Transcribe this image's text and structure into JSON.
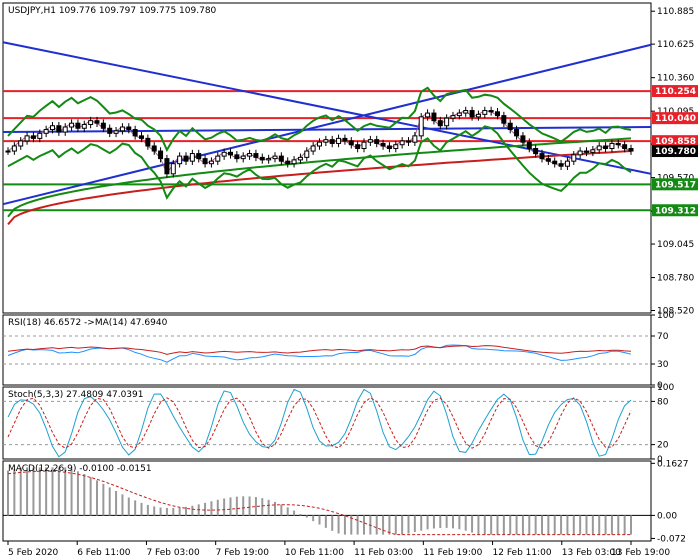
{
  "chart_data": [
    {
      "type": "candlestick",
      "header": {
        "symbol": "USDJPY,H1",
        "open": "109.776",
        "high": "109.797",
        "low": "109.775",
        "close": "109.780"
      },
      "ylim": [
        108.5,
        110.95
      ],
      "y_ticks": [
        "110.885",
        "110.625",
        "110.360",
        "110.095",
        "109.835",
        "109.570",
        "109.305",
        "109.045",
        "108.780",
        "108.520"
      ],
      "x_ticks": [
        "5 Feb 2020",
        "6 Feb 11:00",
        "7 Feb 03:00",
        "7 Feb 19:00",
        "10 Feb 11:00",
        "11 Feb 03:00",
        "11 Feb 19:00",
        "12 Feb 11:00",
        "13 Feb 03:00",
        "13 Feb 19:00"
      ],
      "price_labels": [
        {
          "text": "110.254",
          "value": 110.254,
          "color": "#e8202a"
        },
        {
          "text": "110.040",
          "value": 110.04,
          "color": "#e8202a"
        },
        {
          "text": "109.858",
          "value": 109.858,
          "color": "#e8202a"
        },
        {
          "text": "109.780",
          "value": 109.78,
          "color": "#000000"
        },
        {
          "text": "109.517",
          "value": 109.517,
          "color": "#138a13"
        },
        {
          "text": "109.312",
          "value": 109.312,
          "color": "#138a13"
        }
      ],
      "horizontal_lines": [
        {
          "value": 110.254,
          "color": "#e8202a"
        },
        {
          "value": 110.04,
          "color": "#e8202a"
        },
        {
          "value": 109.858,
          "color": "#e8202a"
        },
        {
          "value": 109.517,
          "color": "#138a13"
        },
        {
          "value": 109.312,
          "color": "#138a13"
        }
      ],
      "close_series": [
        109.78,
        109.82,
        109.86,
        109.9,
        109.88,
        109.92,
        109.95,
        109.98,
        109.93,
        109.97,
        110.0,
        109.96,
        109.99,
        110.02,
        110.0,
        109.96,
        109.92,
        109.94,
        109.97,
        109.95,
        109.9,
        109.88,
        109.82,
        109.78,
        109.72,
        109.6,
        109.68,
        109.74,
        109.7,
        109.76,
        109.72,
        109.68,
        109.7,
        109.74,
        109.77,
        109.75,
        109.72,
        109.74,
        109.76,
        109.73,
        109.71,
        109.72,
        109.74,
        109.7,
        109.68,
        109.71,
        109.73,
        109.78,
        109.82,
        109.85,
        109.87,
        109.84,
        109.88,
        109.86,
        109.83,
        109.8,
        109.85,
        109.87,
        109.84,
        109.82,
        109.8,
        109.83,
        109.86,
        109.85,
        109.9,
        110.05,
        110.08,
        110.02,
        109.98,
        110.04,
        110.06,
        110.08,
        110.1,
        110.05,
        110.07,
        110.1,
        110.09,
        110.06,
        110.0,
        109.95,
        109.9,
        109.85,
        109.8,
        109.76,
        109.72,
        109.7,
        109.68,
        109.66,
        109.7,
        109.75,
        109.78,
        109.77,
        109.79,
        109.82,
        109.8,
        109.84,
        109.83,
        109.8,
        109.78
      ],
      "rsi": {
        "label": "RSI(18) 46.6572 ->MA(14) 47.6940",
        "levels": [
          "100",
          "70",
          "30",
          "0"
        ]
      },
      "stoch": {
        "label": "Stoch(5,3,3) 27.4809 47.0391",
        "levels": [
          "100",
          "80",
          "20",
          "0"
        ]
      },
      "macd": {
        "label": "MACD(12,26,9) -0.0100 -0.0151",
        "levels": [
          "0.1627",
          "0.00",
          "-0.072"
        ]
      },
      "colors": {
        "bollinger": "#138a13",
        "trendline": "#1f2fd0",
        "ma_red": "#c81e1e",
        "ma_green": "#138a13"
      }
    }
  ]
}
